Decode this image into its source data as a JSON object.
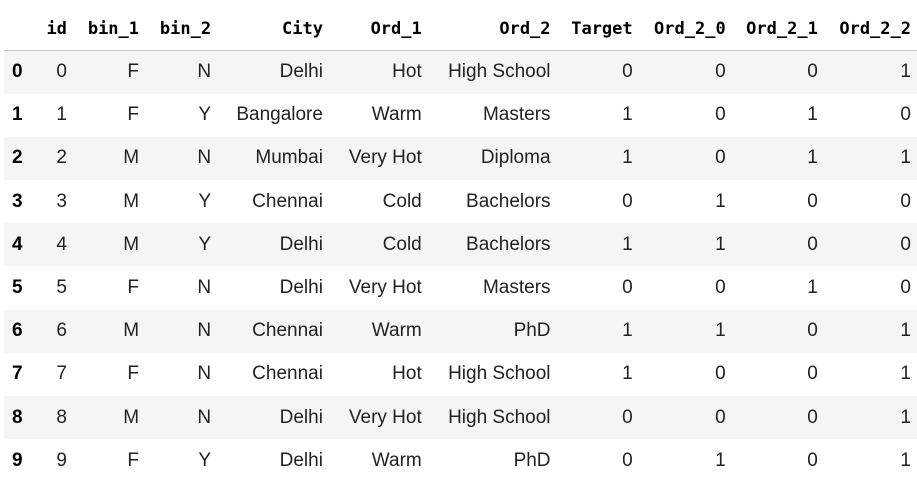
{
  "dataframe": {
    "index_header": "",
    "columns": [
      "id",
      "bin_1",
      "bin_2",
      "City",
      "Ord_1",
      "Ord_2",
      "Target",
      "Ord_2_0",
      "Ord_2_1",
      "Ord_2_2"
    ],
    "rows": [
      {
        "index": "0",
        "cells": [
          "0",
          "F",
          "N",
          "Delhi",
          "Hot",
          "High School",
          "0",
          "0",
          "0",
          "1"
        ]
      },
      {
        "index": "1",
        "cells": [
          "1",
          "F",
          "Y",
          "Bangalore",
          "Warm",
          "Masters",
          "1",
          "0",
          "1",
          "0"
        ]
      },
      {
        "index": "2",
        "cells": [
          "2",
          "M",
          "N",
          "Mumbai",
          "Very Hot",
          "Diploma",
          "1",
          "0",
          "1",
          "1"
        ]
      },
      {
        "index": "3",
        "cells": [
          "3",
          "M",
          "Y",
          "Chennai",
          "Cold",
          "Bachelors",
          "0",
          "1",
          "0",
          "0"
        ]
      },
      {
        "index": "4",
        "cells": [
          "4",
          "M",
          "Y",
          "Delhi",
          "Cold",
          "Bachelors",
          "1",
          "1",
          "0",
          "0"
        ]
      },
      {
        "index": "5",
        "cells": [
          "5",
          "F",
          "N",
          "Delhi",
          "Very Hot",
          "Masters",
          "0",
          "0",
          "1",
          "0"
        ]
      },
      {
        "index": "6",
        "cells": [
          "6",
          "M",
          "N",
          "Chennai",
          "Warm",
          "PhD",
          "1",
          "1",
          "0",
          "1"
        ]
      },
      {
        "index": "7",
        "cells": [
          "7",
          "F",
          "N",
          "Chennai",
          "Hot",
          "High School",
          "1",
          "0",
          "0",
          "1"
        ]
      },
      {
        "index": "8",
        "cells": [
          "8",
          "M",
          "N",
          "Delhi",
          "Very Hot",
          "High School",
          "0",
          "0",
          "0",
          "1"
        ]
      },
      {
        "index": "9",
        "cells": [
          "9",
          "F",
          "Y",
          "Delhi",
          "Warm",
          "PhD",
          "0",
          "1",
          "0",
          "1"
        ]
      }
    ]
  },
  "colors": {
    "odd_row_background": "#f5f5f5",
    "even_row_background": "#ffffff",
    "hover_row_background": "#e0eefb",
    "header_border": "#c8c8c8"
  }
}
